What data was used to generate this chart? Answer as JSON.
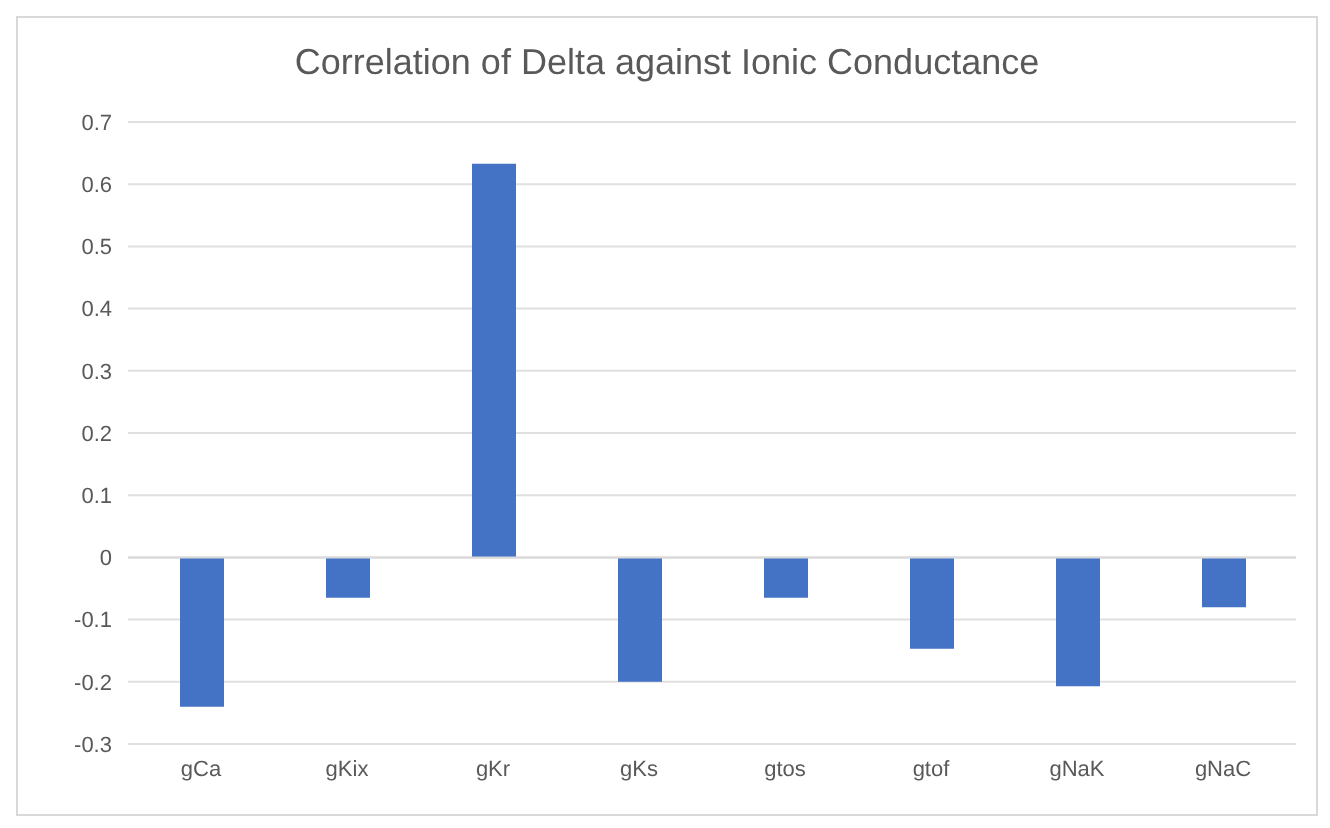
{
  "chart_data": {
    "type": "bar",
    "title": "Correlation of Delta against Ionic Conductance",
    "categories": [
      "gCa",
      "gKix",
      "gKr",
      "gKs",
      "gtos",
      "gtof",
      "gNaK",
      "gNaC"
    ],
    "values": [
      -0.24,
      -0.065,
      0.633,
      -0.2,
      -0.065,
      -0.147,
      -0.207,
      -0.08
    ],
    "color": "#4472c4",
    "ylim": [
      -0.3,
      0.7
    ],
    "yticks": [
      -0.3,
      -0.2,
      -0.1,
      0,
      0.1,
      0.2,
      0.3,
      0.4,
      0.5,
      0.6,
      0.7
    ],
    "grid": "y"
  }
}
